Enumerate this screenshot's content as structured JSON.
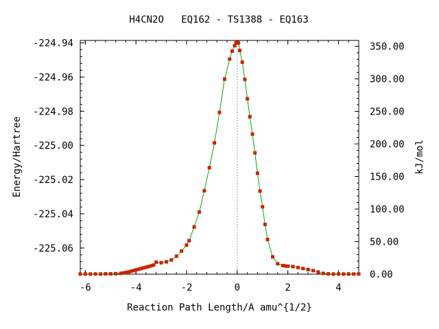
{
  "chart_data": {
    "type": "scatter",
    "title": "H4CN2O   EQ162 - TS1388 - EQ163",
    "xlabel": "Reaction Path Length/A amu^{1/2}",
    "ylabel": "Energy/Hartree",
    "y2label": "kJ/mol",
    "xlim": [
      -6.2,
      4.8
    ],
    "ylim": [
      -225.0753,
      -224.9386
    ],
    "y2lim": [
      0,
      358.9
    ],
    "x_ticks": [
      -6,
      -4,
      -2,
      0,
      2,
      4
    ],
    "x_tick_labels": [
      "-6",
      "-4",
      "-2",
      "0",
      "2",
      "4"
    ],
    "y_ticks": [
      -224.94,
      -224.96,
      -224.98,
      -225.0,
      -225.02,
      -225.04,
      -225.06
    ],
    "y_tick_labels": [
      "-224.94",
      "-224.96",
      "-224.98",
      "-225.00",
      "-225.02",
      "-225.04",
      "-225.06"
    ],
    "y2_ticks": [
      350,
      300,
      250,
      200,
      150,
      100,
      50,
      0
    ],
    "y2_tick_labels": [
      "350.00",
      "300.00",
      "250.00",
      "200.00",
      "150.00",
      "100.00",
      "50.00",
      "0.00"
    ],
    "ts_marker_x": 0,
    "series": [
      {
        "color": "#cc2200",
        "line_color": "#00aa00",
        "x": [
          -6.2,
          -6.0,
          -5.8,
          -5.6,
          -5.4,
          -5.2,
          -5.0,
          -4.8,
          -4.6,
          -4.5,
          -4.4,
          -4.3,
          -4.2,
          -4.1,
          -4.0,
          -3.9,
          -3.8,
          -3.7,
          -3.6,
          -3.5,
          -3.4,
          -3.3,
          -3.2,
          -3.0,
          -2.8,
          -2.6,
          -2.4,
          -2.2,
          -2.0,
          -1.9,
          -1.7,
          -1.5,
          -1.3,
          -1.1,
          -0.9,
          -0.7,
          -0.5,
          -0.3,
          -0.2,
          -0.1,
          -0.05,
          0,
          0.05,
          0.1,
          0.2,
          0.3,
          0.4,
          0.5,
          0.6,
          0.7,
          0.8,
          0.9,
          1.0,
          1.1,
          1.2,
          1.4,
          1.6,
          1.8,
          1.9,
          2.0,
          2.2,
          2.4,
          2.6,
          2.8,
          3.0,
          3.2,
          3.4,
          3.6,
          3.8,
          4.0,
          4.2,
          4.4,
          4.6,
          4.8
        ],
        "y": [
          -225.0752,
          -225.0752,
          -225.0752,
          -225.0752,
          -225.0752,
          -225.0751,
          -225.0751,
          -225.075,
          -225.0748,
          -225.0746,
          -225.0743,
          -225.074,
          -225.0736,
          -225.0732,
          -225.0728,
          -225.0724,
          -225.072,
          -225.0716,
          -225.0712,
          -225.0708,
          -225.0704,
          -225.07,
          -225.0683,
          -225.0686,
          -225.0681,
          -225.067,
          -225.0648,
          -225.0618,
          -225.0583,
          -225.0557,
          -225.0477,
          -225.039,
          -225.0265,
          -225.013,
          -224.9985,
          -224.9807,
          -224.9612,
          -224.9495,
          -224.9448,
          -224.9417,
          -224.9401,
          -224.9398,
          -224.9401,
          -224.9445,
          -224.9513,
          -224.9614,
          -224.9727,
          -224.9832,
          -224.9934,
          -225.0044,
          -225.0163,
          -225.0267,
          -225.0359,
          -225.0462,
          -225.055,
          -225.0652,
          -225.0692,
          -225.0703,
          -225.0705,
          -225.0706,
          -225.0709,
          -225.0714,
          -225.072,
          -225.0726,
          -225.0732,
          -225.074,
          -225.0748,
          -225.0751,
          -225.0752,
          -225.0752,
          -225.0752,
          -225.0752,
          -225.0752,
          -225.0752
        ]
      }
    ]
  }
}
